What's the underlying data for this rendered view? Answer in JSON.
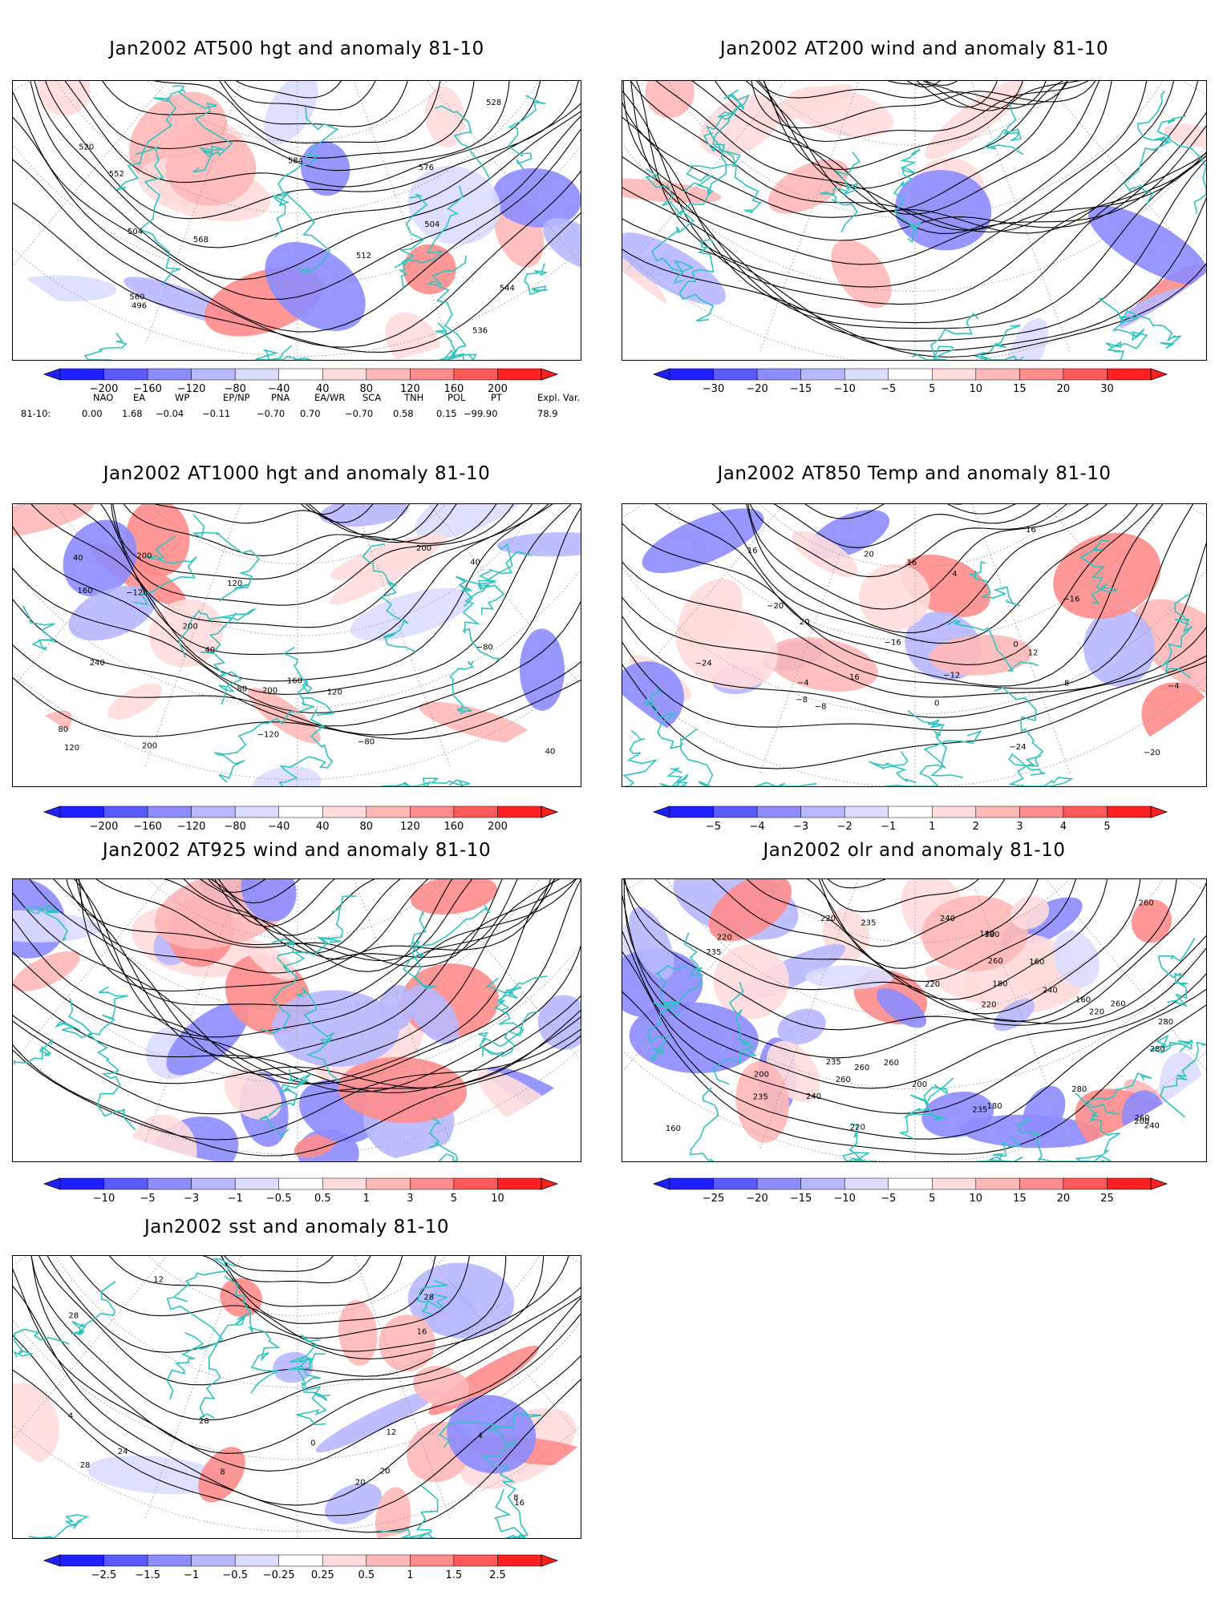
{
  "panels": [
    {
      "id": "z500",
      "title": "Jan2002 AT500 hgt and anomaly 81-10",
      "colorbar": [
        "−200",
        "−160",
        "−120",
        "−80",
        "−40",
        "40",
        "80",
        "120",
        "160",
        "200"
      ],
      "contour_labels": [
        "496",
        "504",
        "528",
        "536",
        "504",
        "512",
        "520",
        "544",
        "552",
        "560",
        "568",
        "576",
        "584"
      ]
    },
    {
      "id": "u200",
      "title": "Jan2002 AT200 wind and anomaly 81-10",
      "colorbar": [
        "−30",
        "−20",
        "−15",
        "−10",
        "−5",
        "5",
        "10",
        "15",
        "20",
        "30"
      ],
      "contour_labels": []
    },
    {
      "id": "z1000",
      "title": "Jan2002 AT1000 hgt and anomaly 81-10",
      "colorbar": [
        "−200",
        "−160",
        "−120",
        "−80",
        "−40",
        "40",
        "80",
        "120",
        "160",
        "200"
      ],
      "contour_labels": [
        "40",
        "80",
        "40",
        "80",
        "−120",
        "−80",
        "40",
        "−80",
        "−120",
        "160",
        "200",
        "240",
        "200",
        "40",
        "200",
        "200",
        "200",
        "160",
        "120",
        "120",
        "120"
      ]
    },
    {
      "id": "t850",
      "title": "Jan2002 AT850 Temp and anomaly 81-10",
      "colorbar": [
        "−5",
        "−4",
        "−3",
        "−2",
        "−1",
        "1",
        "2",
        "3",
        "4",
        "5"
      ],
      "contour_labels": [
        "16",
        "16",
        "−24",
        "−20",
        "−16",
        "−12",
        "−8",
        "−20",
        "−8",
        "−4",
        "0",
        "−4",
        "0",
        "4",
        "8",
        "12",
        "16",
        "16",
        "20",
        "20",
        "−16",
        "−24"
      ]
    },
    {
      "id": "u925",
      "title": "Jan2002 AT925 wind and anomaly 81-10",
      "colorbar": [
        "−10",
        "−5",
        "−3",
        "−1",
        "−0.5",
        "0.5",
        "1",
        "3",
        "5",
        "10"
      ],
      "contour_labels": []
    },
    {
      "id": "olr",
      "title": "Jan2002 olr and anomaly 81-10",
      "colorbar": [
        "−25",
        "−20",
        "−15",
        "−10",
        "−5",
        "5",
        "10",
        "15",
        "20",
        "25"
      ],
      "contour_labels": [
        "260",
        "160",
        "160",
        "180",
        "200",
        "180",
        "160",
        "140",
        "180",
        "200",
        "240",
        "235",
        "220",
        "235",
        "220",
        "260",
        "240",
        "260",
        "280",
        "260",
        "235",
        "220",
        "280",
        "260",
        "280",
        "260",
        "240",
        "220",
        "240",
        "235",
        "220",
        "235",
        "260",
        "200",
        "220"
      ]
    },
    {
      "id": "sst",
      "title": "Jan2002 sst and anomaly 81-10",
      "colorbar": [
        "−2.5",
        "−1.5",
        "−1",
        "−0.5",
        "−0.25",
        "0.25",
        "0.5",
        "1",
        "1.5",
        "2.5"
      ],
      "contour_labels": [
        "24",
        "20",
        "28",
        "0",
        "4",
        "8",
        "12",
        "16",
        "4",
        "8",
        "12",
        "16",
        "20",
        "28",
        "28",
        "28"
      ]
    }
  ],
  "teleconnections": {
    "row_label": "81-10:",
    "headers": [
      "NAO",
      "EA",
      "WP",
      "EP/NP",
      "PNA",
      "EA/WR",
      "SCA",
      "TNH",
      "POL",
      "PT",
      "Expl. Var."
    ],
    "values": [
      "0.00",
      "1.68",
      "−0.04",
      "−0.11",
      "−0.70",
      "0.70",
      "−0.70",
      "0.58",
      "0.15",
      "−99.90",
      "78.9"
    ]
  },
  "colors": {
    "coast": "#2ec4c0",
    "neg": [
      "#2020ff",
      "#5a5aff",
      "#8c8cff",
      "#b8b8ff",
      "#dcdcff"
    ],
    "pos": [
      "#ffdcdc",
      "#ffb8b8",
      "#ff8c8c",
      "#ff5a5a",
      "#ff2020"
    ]
  }
}
